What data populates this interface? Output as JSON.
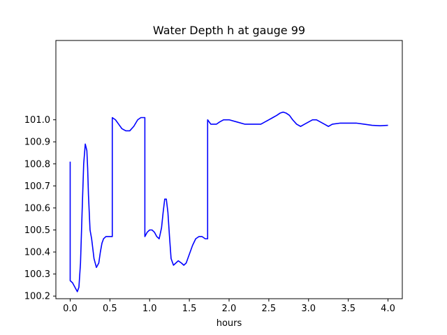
{
  "chart_data": {
    "type": "line",
    "title": "Water Depth h at gauge 99",
    "xlabel": "hours",
    "ylabel": "",
    "xlim": [
      -0.18,
      4.18
    ],
    "ylim": [
      100.188,
      101.36
    ],
    "xticks": [
      0.0,
      0.5,
      1.0,
      1.5,
      2.0,
      2.5,
      3.0,
      3.5,
      4.0
    ],
    "xtick_labels": [
      "0.0",
      "0.5",
      "1.0",
      "1.5",
      "2.0",
      "2.5",
      "3.0",
      "3.5",
      "4.0"
    ],
    "yticks": [
      100.2,
      100.3,
      100.4,
      100.5,
      100.6,
      100.7,
      100.8,
      100.9,
      101.0
    ],
    "ytick_labels": [
      "100.2",
      "100.3",
      "100.4",
      "100.5",
      "100.6",
      "100.7",
      "100.8",
      "100.9",
      "101.0"
    ],
    "grid": false,
    "series": [
      {
        "color": "#0000ff",
        "x": [
          0.0,
          0.0,
          0.03,
          0.06,
          0.09,
          0.11,
          0.13,
          0.15,
          0.17,
          0.19,
          0.21,
          0.22,
          0.23,
          0.25,
          0.27,
          0.3,
          0.33,
          0.36,
          0.38,
          0.4,
          0.42,
          0.45,
          0.48,
          0.52,
          0.53,
          0.53,
          0.57,
          0.61,
          0.65,
          0.7,
          0.75,
          0.8,
          0.85,
          0.89,
          0.92,
          0.94,
          0.94,
          0.97,
          1.0,
          1.03,
          1.06,
          1.09,
          1.12,
          1.15,
          1.17,
          1.19,
          1.21,
          1.23,
          1.25,
          1.27,
          1.3,
          1.33,
          1.36,
          1.4,
          1.43,
          1.46,
          1.5,
          1.54,
          1.58,
          1.62,
          1.66,
          1.7,
          1.73,
          1.73,
          1.77,
          1.8,
          1.84,
          1.88,
          1.93,
          2.0,
          2.1,
          2.2,
          2.3,
          2.4,
          2.5,
          2.55,
          2.6,
          2.64,
          2.68,
          2.72,
          2.76,
          2.8,
          2.85,
          2.9,
          2.95,
          3.0,
          3.05,
          3.1,
          3.15,
          3.2,
          3.25,
          3.3,
          3.4,
          3.5,
          3.6,
          3.7,
          3.8,
          3.9,
          4.0
        ],
        "y": [
          100.81,
          100.27,
          100.26,
          100.24,
          100.22,
          100.24,
          100.35,
          100.58,
          100.8,
          100.89,
          100.86,
          100.78,
          100.66,
          100.5,
          100.46,
          100.37,
          100.33,
          100.35,
          100.4,
          100.44,
          100.46,
          100.47,
          100.47,
          100.47,
          100.47,
          101.01,
          101.0,
          100.98,
          100.96,
          100.95,
          100.95,
          100.97,
          101.0,
          101.01,
          101.01,
          101.01,
          100.47,
          100.49,
          100.5,
          100.5,
          100.49,
          100.47,
          100.46,
          100.51,
          100.58,
          100.64,
          100.64,
          100.58,
          100.47,
          100.37,
          100.34,
          100.35,
          100.36,
          100.35,
          100.34,
          100.35,
          100.39,
          100.43,
          100.46,
          100.47,
          100.47,
          100.46,
          100.46,
          101.0,
          100.98,
          100.98,
          100.98,
          100.99,
          101.0,
          101.0,
          100.99,
          100.98,
          100.98,
          100.98,
          101.0,
          101.01,
          101.02,
          101.03,
          101.035,
          101.03,
          101.02,
          101.0,
          100.98,
          100.97,
          100.98,
          100.99,
          101.0,
          101.0,
          100.99,
          100.98,
          100.97,
          100.98,
          100.985,
          100.985,
          100.985,
          100.98,
          100.975,
          100.973,
          100.975
        ]
      }
    ]
  }
}
